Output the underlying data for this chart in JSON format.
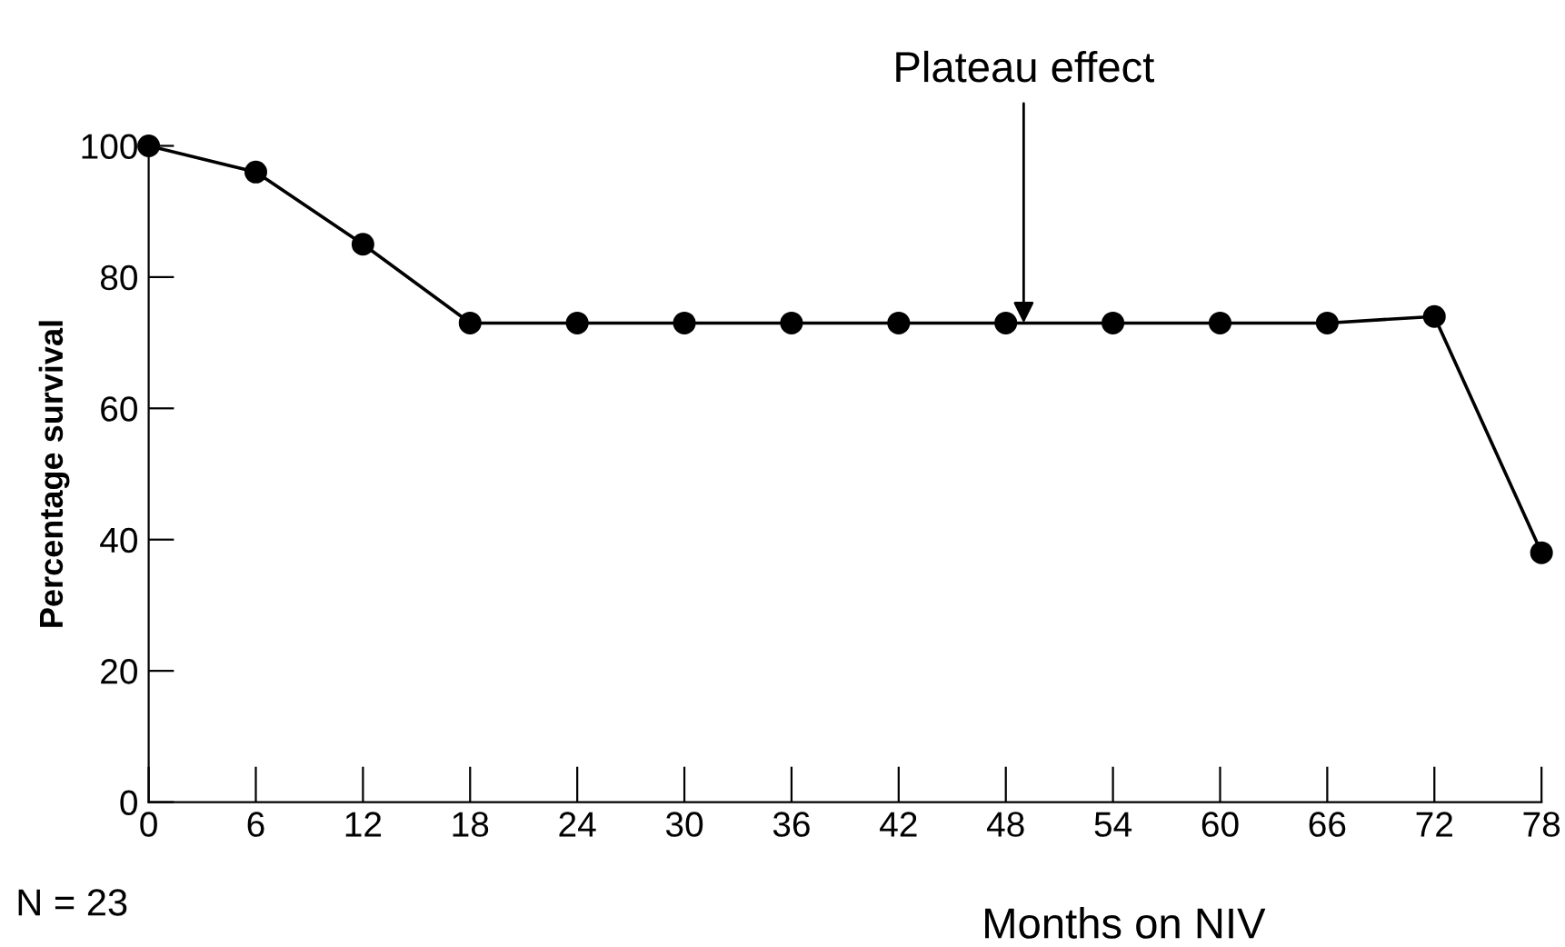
{
  "chart_data": {
    "type": "line",
    "xlabel": "Months on NIV",
    "ylabel": "Percentage survival",
    "x": [
      0,
      6,
      12,
      18,
      24,
      30,
      36,
      42,
      48,
      54,
      60,
      66,
      72,
      78
    ],
    "series": [
      {
        "color": "#000000",
        "values": [
          100,
          96,
          85,
          73,
          73,
          73,
          73,
          73,
          73,
          73,
          73,
          73,
          74,
          38
        ]
      }
    ],
    "xlim": [
      0,
      78
    ],
    "ylim": [
      0,
      100
    ],
    "xticks": [
      0,
      6,
      12,
      18,
      24,
      30,
      36,
      42,
      48,
      54,
      60,
      66,
      72,
      78
    ],
    "yticks": [
      0,
      20,
      40,
      60,
      80,
      100
    ],
    "marker": "circle",
    "line_style": "solid",
    "grid": false,
    "legend": false,
    "annotations": [
      {
        "text": "Plateau effect",
        "x": 49,
        "y": 73
      },
      "N = 23"
    ]
  }
}
